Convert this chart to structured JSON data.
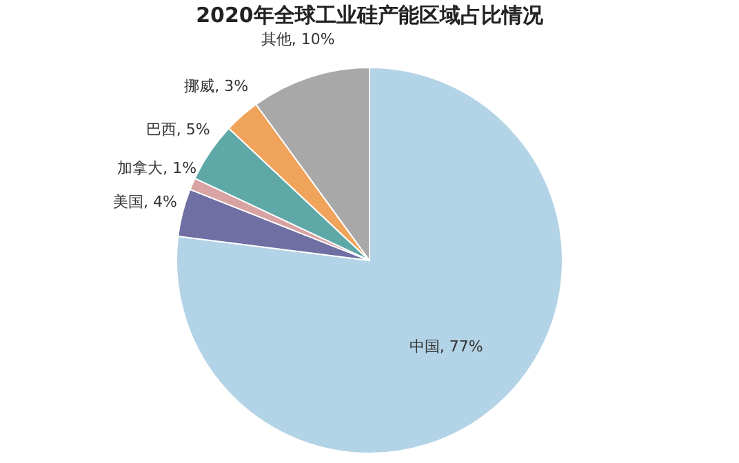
{
  "chart_data": {
    "type": "pie",
    "title": "2020年全球工业硅产能区域占比情况",
    "categories": [
      "中国",
      "美国",
      "加拿大",
      "巴西",
      "挪威",
      "其他"
    ],
    "values": [
      77,
      4,
      1,
      5,
      3,
      10
    ],
    "colors": [
      "#b3d3e6",
      "#6f6fa3",
      "#d9a3a3",
      "#5fa8a8",
      "#f0a35a",
      "#a8a8a8"
    ],
    "value_labels": [
      "77%",
      "4%",
      "1%",
      "5%",
      "3%",
      "10%"
    ],
    "legend": false
  }
}
